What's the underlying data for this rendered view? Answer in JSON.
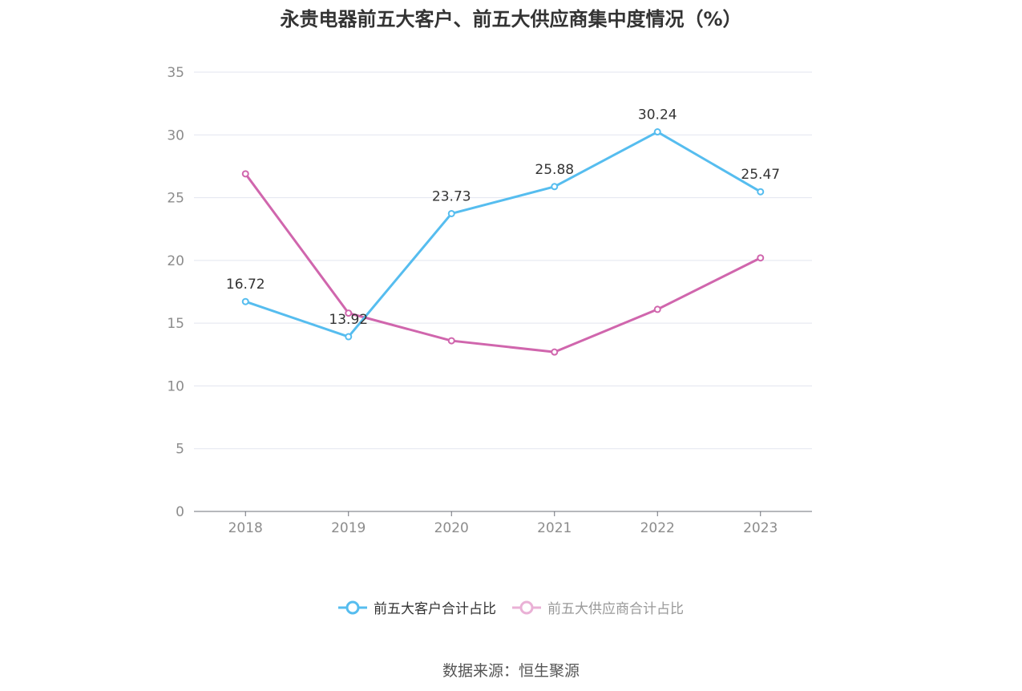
{
  "title": "永贵电器前五大客户、前五大供应商集中度情况（%）",
  "source": "数据来源：恒生聚源",
  "colors": {
    "customers": "#56bdef",
    "suppliers": "#d066ad",
    "suppliers_legend": "#eab1d6",
    "grid": "#e3e5ef",
    "axis": "#6e7079",
    "tick_text": "#8c8c8c"
  },
  "chart_data": {
    "type": "line",
    "title": "永贵电器前五大客户、前五大供应商集中度情况（%）",
    "xlabel": "",
    "ylabel": "",
    "x": [
      "2018",
      "2019",
      "2020",
      "2021",
      "2022",
      "2023"
    ],
    "ylim": [
      0,
      35
    ],
    "yticks": [
      "0",
      "5",
      "10",
      "15",
      "20",
      "25",
      "30",
      "35"
    ],
    "grid": true,
    "legend_position": "bottom",
    "series": [
      {
        "name": "前五大客户合计占比",
        "values": [
          16.72,
          13.92,
          23.73,
          25.88,
          30.24,
          25.47
        ],
        "labels": [
          "16.72",
          "13.92",
          "23.73",
          "25.88",
          "30.24",
          "25.47"
        ],
        "show_labels": true
      },
      {
        "name": "前五大供应商合计占比",
        "values": [
          26.9,
          15.8,
          13.6,
          12.7,
          16.1,
          20.2
        ],
        "show_labels": false
      }
    ]
  }
}
